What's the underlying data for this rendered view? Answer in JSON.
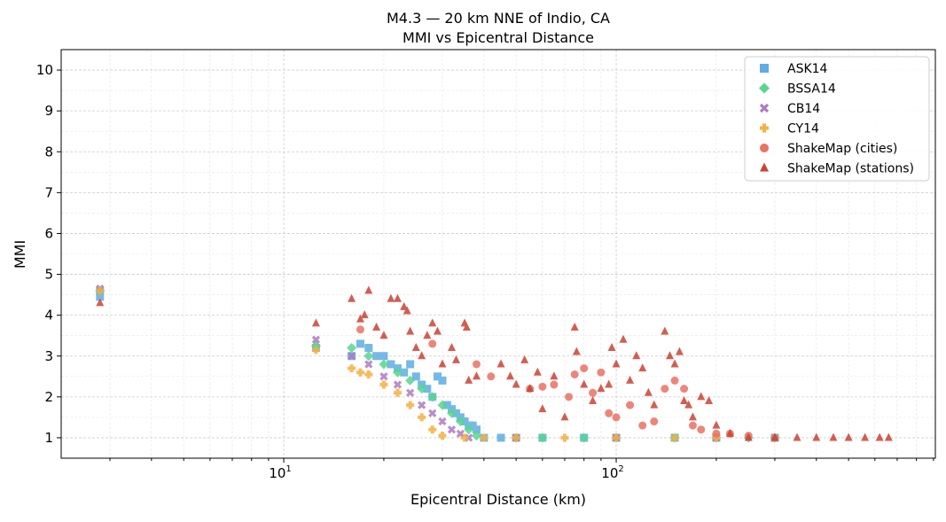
{
  "chart_data": {
    "type": "scatter",
    "title": "M4.3 — 20 km NNE of Indio, CA",
    "subtitle": "MMI vs Epicentral Distance",
    "xlabel": "Epicentral Distance (km)",
    "ylabel": "MMI",
    "xscale": "log",
    "xlim": [
      2.14,
      912
    ],
    "ylim": [
      0.5,
      10.5
    ],
    "x_tick_labels": [
      "10^1",
      "10^2"
    ],
    "y_tick_labels": [
      "1",
      "2",
      "3",
      "4",
      "5",
      "6",
      "7",
      "8",
      "9",
      "10"
    ],
    "grid": true,
    "legend_position": "top-right",
    "series": [
      {
        "name": "ASK14",
        "color": "#5dade2",
        "marker": "square",
        "points": [
          [
            2.8,
            4.45
          ],
          [
            2.8,
            4.6
          ],
          [
            12.5,
            3.2
          ],
          [
            16,
            3.0
          ],
          [
            17,
            3.3
          ],
          [
            18,
            3.2
          ],
          [
            19,
            3.0
          ],
          [
            20,
            3.0
          ],
          [
            21,
            2.8
          ],
          [
            22,
            2.7
          ],
          [
            23,
            2.6
          ],
          [
            24,
            2.8
          ],
          [
            25,
            2.5
          ],
          [
            26,
            2.3
          ],
          [
            27,
            2.2
          ],
          [
            28,
            2.0
          ],
          [
            29,
            2.5
          ],
          [
            30,
            2.4
          ],
          [
            31,
            1.8
          ],
          [
            32,
            1.7
          ],
          [
            33,
            1.6
          ],
          [
            34,
            1.5
          ],
          [
            35,
            1.4
          ],
          [
            36,
            1.3
          ],
          [
            37,
            1.3
          ],
          [
            38,
            1.2
          ],
          [
            40,
            1.0
          ],
          [
            45,
            1.0
          ],
          [
            50,
            1.0
          ],
          [
            60,
            1.0
          ],
          [
            80,
            1.0
          ],
          [
            100,
            1.0
          ],
          [
            150,
            1.0
          ],
          [
            200,
            1.0
          ],
          [
            300,
            1.0
          ]
        ]
      },
      {
        "name": "BSSA14",
        "color": "#58d68d",
        "marker": "diamond",
        "points": [
          [
            2.8,
            4.6
          ],
          [
            12.5,
            3.25
          ],
          [
            16,
            3.2
          ],
          [
            18,
            3.0
          ],
          [
            20,
            2.8
          ],
          [
            22,
            2.6
          ],
          [
            24,
            2.4
          ],
          [
            26,
            2.2
          ],
          [
            28,
            2.0
          ],
          [
            30,
            1.8
          ],
          [
            32,
            1.6
          ],
          [
            34,
            1.4
          ],
          [
            36,
            1.2
          ],
          [
            38,
            1.05
          ],
          [
            50,
            1.0
          ],
          [
            60,
            1.0
          ],
          [
            80,
            1.0
          ],
          [
            100,
            1.0
          ],
          [
            150,
            1.0
          ],
          [
            200,
            1.0
          ],
          [
            250,
            1.0
          ],
          [
            300,
            1.0
          ]
        ]
      },
      {
        "name": "CB14",
        "color": "#af7ac5",
        "marker": "x",
        "points": [
          [
            2.8,
            4.65
          ],
          [
            12.5,
            3.4
          ],
          [
            16,
            3.0
          ],
          [
            18,
            2.8
          ],
          [
            20,
            2.5
          ],
          [
            22,
            2.3
          ],
          [
            24,
            2.1
          ],
          [
            26,
            1.8
          ],
          [
            28,
            1.6
          ],
          [
            30,
            1.4
          ],
          [
            32,
            1.2
          ],
          [
            34,
            1.1
          ],
          [
            36,
            1.0
          ],
          [
            50,
            1.0
          ],
          [
            100,
            1.0
          ],
          [
            200,
            1.0
          ]
        ]
      },
      {
        "name": "CY14",
        "color": "#f5b041",
        "marker": "plus",
        "points": [
          [
            2.8,
            4.6
          ],
          [
            12.5,
            3.15
          ],
          [
            16,
            2.7
          ],
          [
            17,
            2.6
          ],
          [
            18,
            2.55
          ],
          [
            20,
            2.3
          ],
          [
            22,
            2.1
          ],
          [
            24,
            1.8
          ],
          [
            26,
            1.5
          ],
          [
            28,
            1.2
          ],
          [
            30,
            1.05
          ],
          [
            35,
            1.0
          ],
          [
            40,
            1.0
          ],
          [
            50,
            1.0
          ],
          [
            70,
            1.0
          ],
          [
            100,
            1.0
          ],
          [
            150,
            1.0
          ],
          [
            200,
            1.0
          ]
        ]
      },
      {
        "name": "ShakeMap (cities)",
        "color": "#ec7063",
        "marker": "circle",
        "points": [
          [
            17,
            3.65
          ],
          [
            28,
            3.3
          ],
          [
            38,
            2.8
          ],
          [
            42,
            2.5
          ],
          [
            55,
            2.2
          ],
          [
            60,
            2.25
          ],
          [
            65,
            2.3
          ],
          [
            72,
            2.0
          ],
          [
            75,
            2.55
          ],
          [
            80,
            2.7
          ],
          [
            85,
            2.1
          ],
          [
            90,
            2.6
          ],
          [
            95,
            1.6
          ],
          [
            100,
            1.5
          ],
          [
            110,
            1.8
          ],
          [
            120,
            1.3
          ],
          [
            130,
            1.4
          ],
          [
            140,
            2.2
          ],
          [
            150,
            2.4
          ],
          [
            160,
            2.2
          ],
          [
            170,
            1.3
          ],
          [
            180,
            1.2
          ],
          [
            200,
            1.1
          ],
          [
            220,
            1.1
          ],
          [
            250,
            1.05
          ],
          [
            300,
            1.0
          ]
        ]
      },
      {
        "name": "ShakeMap (stations)",
        "color": "#cb4335",
        "marker": "triangle",
        "points": [
          [
            2.8,
            4.3
          ],
          [
            12.5,
            3.8
          ],
          [
            16,
            4.4
          ],
          [
            17,
            3.9
          ],
          [
            17.5,
            4.0
          ],
          [
            18,
            4.6
          ],
          [
            19,
            3.7
          ],
          [
            20,
            3.5
          ],
          [
            21,
            4.4
          ],
          [
            22,
            4.4
          ],
          [
            23,
            4.2
          ],
          [
            23.5,
            4.1
          ],
          [
            24,
            3.6
          ],
          [
            25,
            3.2
          ],
          [
            26,
            3.0
          ],
          [
            27,
            3.5
          ],
          [
            28,
            3.8
          ],
          [
            29,
            3.6
          ],
          [
            30,
            2.8
          ],
          [
            32,
            3.2
          ],
          [
            33,
            2.9
          ],
          [
            35,
            3.8
          ],
          [
            35.5,
            3.7
          ],
          [
            36,
            2.4
          ],
          [
            38,
            2.5
          ],
          [
            45,
            2.8
          ],
          [
            48,
            2.5
          ],
          [
            50,
            2.3
          ],
          [
            53,
            2.9
          ],
          [
            55,
            2.2
          ],
          [
            58,
            2.6
          ],
          [
            60,
            1.7
          ],
          [
            65,
            2.5
          ],
          [
            70,
            1.5
          ],
          [
            75,
            3.7
          ],
          [
            76,
            3.1
          ],
          [
            80,
            2.3
          ],
          [
            85,
            1.9
          ],
          [
            90,
            2.2
          ],
          [
            95,
            2.3
          ],
          [
            97,
            3.2
          ],
          [
            100,
            2.8
          ],
          [
            105,
            3.4
          ],
          [
            110,
            2.4
          ],
          [
            115,
            3.0
          ],
          [
            120,
            2.7
          ],
          [
            125,
            2.1
          ],
          [
            130,
            1.8
          ],
          [
            140,
            3.6
          ],
          [
            145,
            3.0
          ],
          [
            150,
            2.8
          ],
          [
            155,
            3.1
          ],
          [
            160,
            1.9
          ],
          [
            165,
            1.8
          ],
          [
            170,
            1.5
          ],
          [
            180,
            2.0
          ],
          [
            190,
            1.9
          ],
          [
            200,
            1.3
          ],
          [
            220,
            1.1
          ],
          [
            250,
            1.0
          ],
          [
            300,
            1.0
          ],
          [
            350,
            1.0
          ],
          [
            400,
            1.0
          ],
          [
            450,
            1.0
          ],
          [
            500,
            1.0
          ],
          [
            560,
            1.0
          ],
          [
            620,
            1.0
          ],
          [
            660,
            1.0
          ]
        ]
      }
    ]
  }
}
